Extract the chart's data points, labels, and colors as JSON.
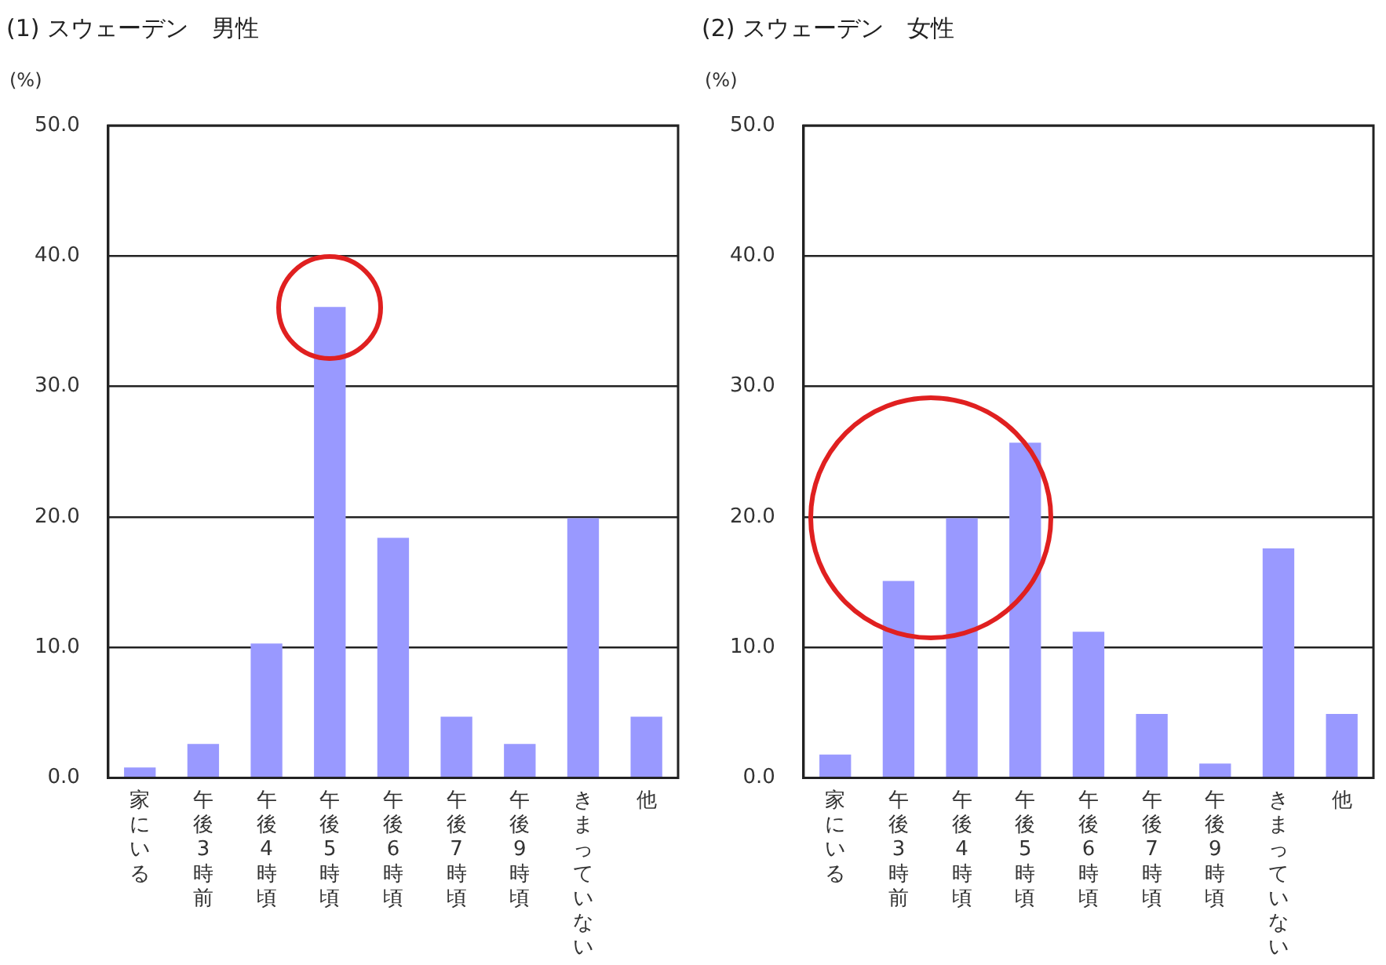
{
  "chart_data": [
    {
      "type": "bar",
      "title": "(1) スウェーデン　男性",
      "ylabel": "(%)",
      "categories": [
        "家にいる",
        "午後3時前",
        "午後4時頃",
        "午後5時頃",
        "午後6時頃",
        "午後7時頃",
        "午後9時頃",
        "きまっていない",
        "他"
      ],
      "values": [
        0.8,
        2.6,
        10.3,
        36.1,
        18.4,
        4.7,
        2.6,
        19.9,
        4.7
      ],
      "color": "#9999ff",
      "ylim": [
        0,
        50
      ],
      "yticks": [
        {
          "value": 0,
          "label": "0.0"
        },
        {
          "value": 10,
          "label": "10.0"
        },
        {
          "value": 20,
          "label": "20.0"
        },
        {
          "value": 30,
          "label": "30.0"
        },
        {
          "value": 40,
          "label": "40.0"
        },
        {
          "value": 50,
          "label": "50.0"
        }
      ],
      "grid": "y",
      "legend": false
    },
    {
      "type": "bar",
      "title": "(2) スウェーデン　女性",
      "ylabel": "(%)",
      "categories": [
        "家にいる",
        "午後3時前",
        "午後4時頃",
        "午後5時頃",
        "午後6時頃",
        "午後7時頃",
        "午後9時頃",
        "きまっていない",
        "他"
      ],
      "values": [
        1.8,
        15.1,
        19.9,
        25.7,
        11.2,
        4.9,
        1.1,
        17.6,
        4.9
      ],
      "color": "#9999ff",
      "ylim": [
        0,
        50
      ],
      "yticks": [
        {
          "value": 0,
          "label": "0.0"
        },
        {
          "value": 10,
          "label": "10.0"
        },
        {
          "value": 20,
          "label": "20.0"
        },
        {
          "value": 30,
          "label": "30.0"
        },
        {
          "value": 40,
          "label": "40.0"
        },
        {
          "value": 50,
          "label": "50.0"
        }
      ],
      "grid": "y",
      "legend": false
    }
  ]
}
